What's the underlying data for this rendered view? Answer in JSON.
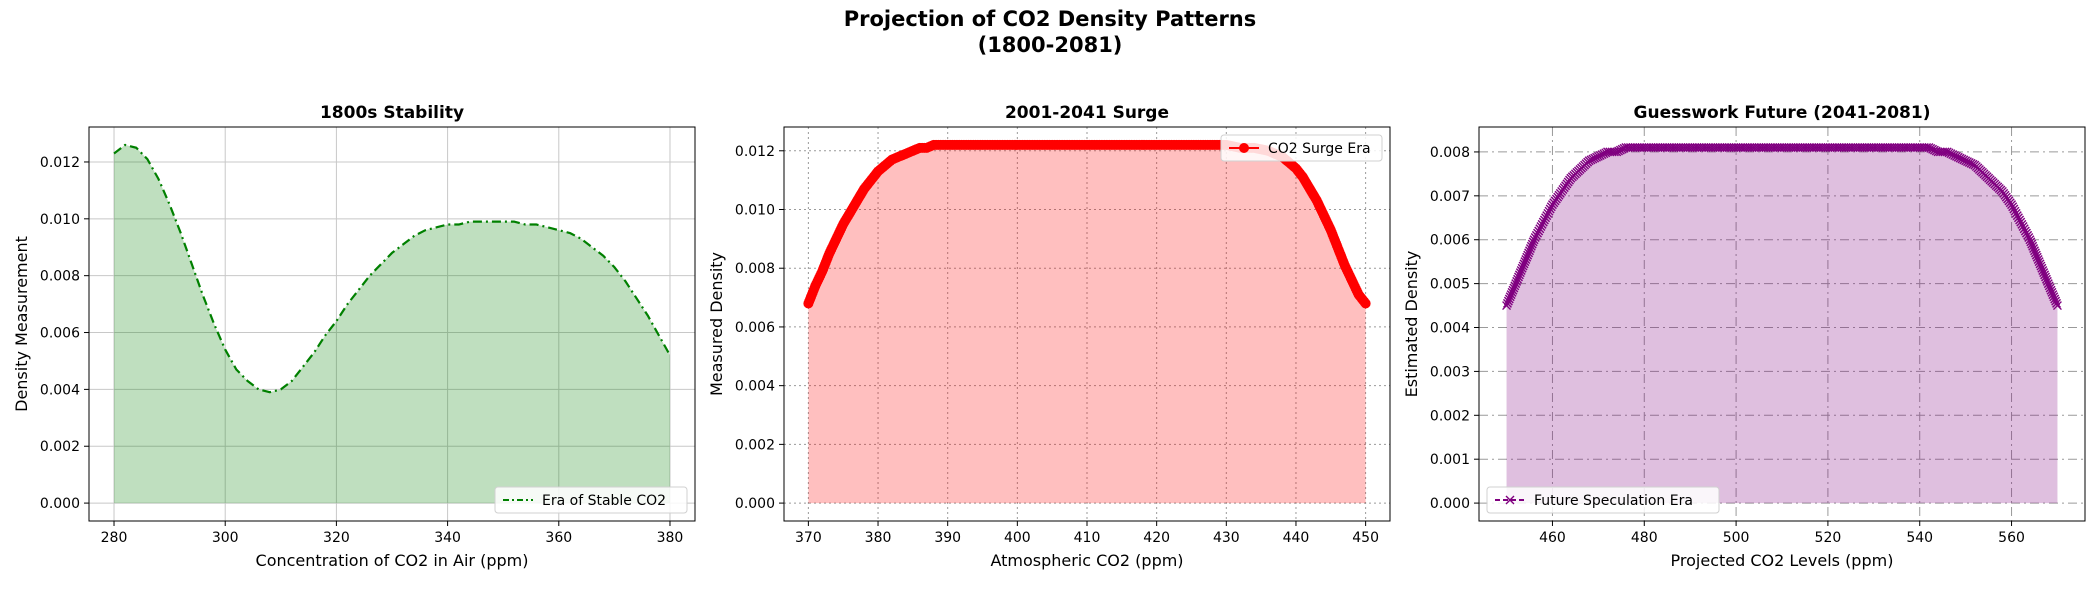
{
  "figure": {
    "suptitle_line1": "Projection of CO2 Density Patterns",
    "suptitle_line2": "(1800-2081)"
  },
  "chart_data": [
    {
      "type": "area",
      "title": "1800s Stability",
      "xlabel": "Concentration of CO2 in Air (ppm)",
      "ylabel": "Density Measurement",
      "xlim": [
        275.5,
        384.5
      ],
      "ylim": [
        -0.00063,
        0.01323
      ],
      "xticks": [
        280,
        300,
        320,
        340,
        360,
        380
      ],
      "yticks": [
        0.0,
        0.002,
        0.004,
        0.006,
        0.008,
        0.01,
        0.012
      ],
      "ytick_decimals": 3,
      "grid": {
        "on": true,
        "style": "solid"
      },
      "legend": {
        "position": "lower-right"
      },
      "series": [
        {
          "name": "Era of Stable CO2",
          "color": "#008000",
          "fill_color": "#008000",
          "line_style": "dashdot",
          "marker": "none",
          "x": [
            280,
            282,
            284,
            286,
            288,
            290,
            292,
            294,
            296,
            298,
            300,
            302,
            304,
            306,
            308,
            310,
            312,
            314,
            316,
            318,
            320,
            322,
            324,
            326,
            328,
            330,
            332,
            334,
            336,
            338,
            340,
            342,
            344,
            346,
            348,
            350,
            352,
            354,
            356,
            358,
            360,
            362,
            364,
            366,
            368,
            370,
            372,
            374,
            376,
            378,
            380
          ],
          "y": [
            0.0123,
            0.0126,
            0.0125,
            0.0121,
            0.0114,
            0.0105,
            0.0095,
            0.0084,
            0.0073,
            0.0063,
            0.0054,
            0.0047,
            0.0043,
            0.004,
            0.0039,
            0.004,
            0.0043,
            0.0048,
            0.0053,
            0.0059,
            0.0064,
            0.007,
            0.0075,
            0.008,
            0.0084,
            0.0088,
            0.0091,
            0.0094,
            0.0096,
            0.0097,
            0.0098,
            0.0098,
            0.0099,
            0.0099,
            0.0099,
            0.0099,
            0.0099,
            0.0098,
            0.0098,
            0.0097,
            0.0096,
            0.0095,
            0.0093,
            0.009,
            0.0087,
            0.0083,
            0.0078,
            0.0072,
            0.0066,
            0.0059,
            0.0052
          ]
        }
      ]
    },
    {
      "type": "area",
      "title": "2001-2041 Surge",
      "xlabel": "Atmospheric CO2 (ppm)",
      "ylabel": "Measured Density",
      "xlim": [
        366.5,
        453.5
      ],
      "ylim": [
        -0.00061,
        0.01281
      ],
      "xticks": [
        370,
        380,
        390,
        400,
        410,
        420,
        430,
        440,
        450
      ],
      "yticks": [
        0.0,
        0.002,
        0.004,
        0.006,
        0.008,
        0.01,
        0.012
      ],
      "ytick_decimals": 3,
      "grid": {
        "on": true,
        "style": "dotted"
      },
      "legend": {
        "position": "upper-right"
      },
      "series": [
        {
          "name": "CO2 Surge Era",
          "color": "#ff0000",
          "fill_color": "#ff0000",
          "line_style": "solid",
          "marker": "circle",
          "x": [
            370,
            371,
            372,
            373,
            374,
            375,
            376,
            377,
            378,
            379,
            380,
            381,
            382,
            383,
            384,
            385,
            386,
            387,
            388,
            389,
            390,
            392,
            395,
            400,
            405,
            410,
            415,
            420,
            425,
            428,
            430,
            432,
            434,
            436,
            437,
            438,
            439,
            440,
            441,
            442,
            443,
            444,
            445,
            446,
            447,
            448,
            449,
            450
          ],
          "y": [
            0.0068,
            0.0074,
            0.0079,
            0.0085,
            0.009,
            0.0095,
            0.0099,
            0.0103,
            0.0107,
            0.011,
            0.0113,
            0.0115,
            0.0117,
            0.0118,
            0.0119,
            0.012,
            0.0121,
            0.0121,
            0.0122,
            0.0122,
            0.0122,
            0.0122,
            0.0122,
            0.0122,
            0.0122,
            0.0122,
            0.0122,
            0.0122,
            0.0122,
            0.0122,
            0.0122,
            0.0121,
            0.0121,
            0.012,
            0.0119,
            0.0118,
            0.0116,
            0.0114,
            0.0111,
            0.0107,
            0.0103,
            0.0098,
            0.0093,
            0.0087,
            0.0081,
            0.0076,
            0.0071,
            0.0068
          ]
        }
      ]
    },
    {
      "type": "area",
      "title": "Guesswork Future (2041-2081)",
      "xlabel": "Projected CO2 Levels (ppm)",
      "ylabel": "Estimated Density",
      "xlim": [
        444.0,
        576.0
      ],
      "ylim": [
        -0.000408,
        0.008568
      ],
      "xticks": [
        460,
        480,
        500,
        520,
        540,
        560
      ],
      "yticks": [
        0.0,
        0.001,
        0.002,
        0.003,
        0.004,
        0.005,
        0.006,
        0.007,
        0.008
      ],
      "ytick_decimals": 3,
      "grid": {
        "on": true,
        "style": "dashdot"
      },
      "legend": {
        "position": "lower-left"
      },
      "series": [
        {
          "name": "Future Speculation Era",
          "color": "#800080",
          "fill_color": "#800080",
          "line_style": "dashed",
          "marker": "x",
          "x": [
            450,
            452,
            454,
            456,
            458,
            460,
            462,
            464,
            466,
            468,
            470,
            472,
            474,
            476,
            478,
            480,
            484,
            488,
            492,
            496,
            500,
            505,
            510,
            515,
            520,
            525,
            530,
            535,
            538,
            540,
            542,
            544,
            546,
            548,
            550,
            552,
            554,
            556,
            558,
            560,
            562,
            564,
            566,
            568,
            570
          ],
          "y": [
            0.0045,
            0.005,
            0.0055,
            0.006,
            0.0064,
            0.0068,
            0.0071,
            0.0074,
            0.0076,
            0.0078,
            0.0079,
            0.008,
            0.008,
            0.0081,
            0.0081,
            0.0081,
            0.0081,
            0.0081,
            0.0081,
            0.0081,
            0.0081,
            0.0081,
            0.0081,
            0.0081,
            0.0081,
            0.0081,
            0.0081,
            0.0081,
            0.0081,
            0.0081,
            0.0081,
            0.008,
            0.008,
            0.0079,
            0.0078,
            0.0077,
            0.0075,
            0.0073,
            0.0071,
            0.0068,
            0.0064,
            0.006,
            0.0055,
            0.005,
            0.0045
          ]
        }
      ]
    }
  ]
}
